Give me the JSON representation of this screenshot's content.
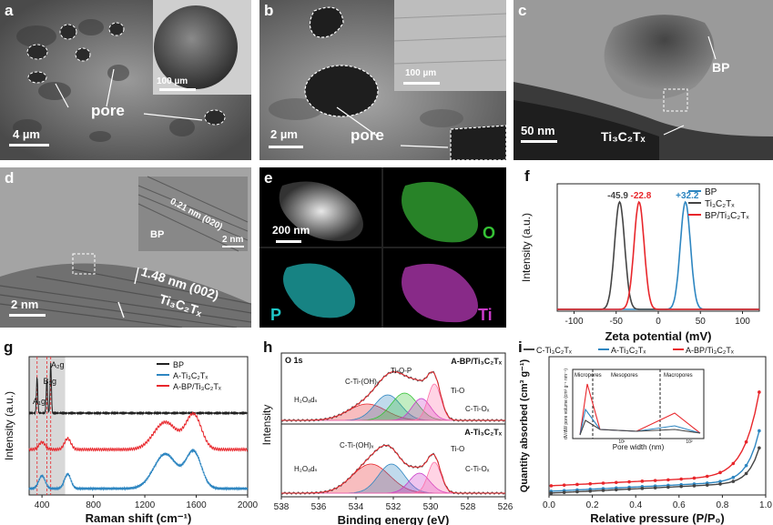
{
  "panels": {
    "a": {
      "label": "a",
      "scale_main": "4 µm",
      "scale_inset": "100 µm",
      "text_pore": "pore"
    },
    "b": {
      "label": "b",
      "scale_main": "2 µm",
      "scale_inset": "100 µm",
      "text_pore": "pore"
    },
    "c": {
      "label": "c",
      "scale": "50 nm",
      "text_bp": "BP",
      "text_mxene": "Ti₃C₂Tₓ"
    },
    "d": {
      "label": "d",
      "scale_main": "2 nm",
      "scale_inset": "2 nm",
      "text_spacing": "0.21 nm (020)",
      "text_bp": "BP",
      "text_layer": "1.48 nm (002)",
      "text_mxene": "Ti₃C₂Tₓ"
    },
    "e": {
      "label": "e",
      "scale": "200 nm",
      "el_o": "O",
      "el_p": "P",
      "el_ti": "Ti"
    },
    "f": {
      "label": "f"
    },
    "g": {
      "label": "g"
    },
    "h": {
      "label": "h"
    },
    "i": {
      "label": "i"
    }
  },
  "colors": {
    "black": "#222222",
    "red": "#e8262b",
    "blue": "#2e86c1",
    "green": "#35c235",
    "cyan": "#1fc7c7",
    "magenta": "#c93ac9"
  },
  "chart_data": [
    {
      "panel": "f",
      "type": "line",
      "xlabel": "Zeta potential (mV)",
      "ylabel": "Intensity (a.u.)",
      "xlim": [
        -120,
        120
      ],
      "x_ticks": [
        -100,
        -50,
        0,
        50,
        100
      ],
      "series": [
        {
          "name": "BP",
          "color": "#2e86c1",
          "peak": 32.2,
          "label": "+32.2"
        },
        {
          "name": "Ti₃C₂Tₓ",
          "color": "#444444",
          "peak": -45.9,
          "label": "-45.9"
        },
        {
          "name": "BP/Ti₃C₂Tₓ",
          "color": "#e8262b",
          "peak": -22.8,
          "label": "-22.8"
        }
      ],
      "legend": "top-right"
    },
    {
      "panel": "g",
      "type": "line",
      "xlabel": "Raman shift (cm⁻¹)",
      "ylabel": "Intensity (a.u.)",
      "xlim": [
        300,
        2000
      ],
      "x_ticks": [
        400,
        800,
        1200,
        1600,
        2000
      ],
      "peak_labels": [
        "A₁g",
        "B₂g",
        "A₂g"
      ],
      "series": [
        {
          "name": "BP",
          "color": "#222222"
        },
        {
          "name": "A-Ti₃C₂Tₓ",
          "color": "#2e86c1"
        },
        {
          "name": "A-BP/Ti₃C₂Tₓ",
          "color": "#e8262b"
        }
      ],
      "legend": "top-right"
    },
    {
      "panel": "h",
      "type": "line",
      "xlabel": "Binding energy (eV)",
      "ylabel": "Intensity",
      "xlim": [
        538,
        526
      ],
      "x_ticks": [
        538,
        536,
        534,
        532,
        530,
        528,
        526
      ],
      "core_level": "O 1s",
      "subplots": [
        {
          "name": "A-BP/Ti₃C₂Tₓ",
          "components": [
            "H₂Oₐdₛ",
            "C-Ti-(OH)ₓ",
            "Ti-O-P",
            "Ti-O",
            "C-Ti-Oₓ"
          ]
        },
        {
          "name": "A-Ti₃C₂Tₓ",
          "components": [
            "H₂Oₐdₛ",
            "C-Ti-(OH)ₓ",
            "Ti-O",
            "C-Ti-Oₓ"
          ]
        }
      ]
    },
    {
      "panel": "i",
      "type": "line",
      "xlabel": "Relative pressure (P/P₀)",
      "ylabel": "Quantity absorbed (cm³ g⁻¹)",
      "xlim": [
        0,
        1
      ],
      "x_ticks": [
        0.0,
        0.2,
        0.4,
        0.6,
        0.8,
        1.0
      ],
      "series": [
        {
          "name": "C-Ti₃C₂Tₓ",
          "color": "#444444"
        },
        {
          "name": "A-Ti₃C₂Tₓ",
          "color": "#2e86c1"
        },
        {
          "name": "A-BP/Ti₃C₂Tₓ",
          "color": "#e8262b"
        }
      ],
      "inset": {
        "xlabel": "Pore width (nm)",
        "ylabel": "dV/dW pore volume (cm³ g⁻¹ nm⁻¹)",
        "regions": [
          "Micropores",
          "Mesopores",
          "Macropores"
        ],
        "x_ticks": [
          "10¹",
          "10²"
        ]
      },
      "legend": "top"
    }
  ]
}
